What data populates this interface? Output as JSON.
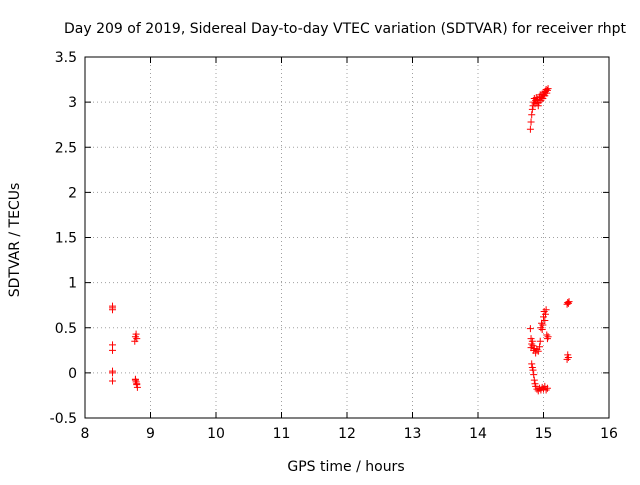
{
  "chart_data": {
    "type": "scatter",
    "title": "Day 209 of 2019, Sidereal Day-to-day VTEC variation (SDTVAR) for receiver rhpt",
    "xlabel": "GPS time / hours",
    "ylabel": "SDTVAR / TECUs",
    "xlim": [
      8,
      16
    ],
    "ylim": [
      -0.5,
      3.5
    ],
    "xticks": [
      8,
      9,
      10,
      11,
      12,
      13,
      14,
      15,
      16
    ],
    "xtick_labels": [
      "8",
      "9",
      "10",
      "11",
      "12",
      "13",
      "14",
      "15",
      "16"
    ],
    "yticks": [
      -0.5,
      0,
      0.5,
      1,
      1.5,
      2,
      2.5,
      3,
      3.5
    ],
    "ytick_labels": [
      "-0.5",
      "0",
      "0.5",
      "1",
      "1.5",
      "2",
      "2.5",
      "3",
      "3.5"
    ],
    "grid": true,
    "marker": "+",
    "color": "#ff0000",
    "series": [
      {
        "name": "SDTVAR",
        "x": [
          8.42,
          8.42,
          8.42,
          8.42,
          8.42,
          8.42,
          8.42,
          8.42,
          8.76,
          8.77,
          8.78,
          8.79,
          8.77,
          8.78,
          8.79,
          8.8,
          8.77,
          8.79,
          14.8,
          14.81,
          14.82,
          14.83,
          14.84,
          14.85,
          14.86,
          14.87,
          14.88,
          14.89,
          14.9,
          14.91,
          14.92,
          14.93,
          14.94,
          14.95,
          14.96,
          14.97,
          14.98,
          14.99,
          15.0,
          15.01,
          15.02,
          15.03,
          15.04,
          15.05,
          15.06,
          15.07,
          14.8,
          14.81,
          14.82,
          14.83,
          14.84,
          14.85,
          14.86,
          14.87,
          14.88,
          14.9,
          14.92,
          14.94,
          14.96,
          14.98,
          15.0,
          15.02,
          15.04,
          15.06,
          14.81,
          14.82,
          14.83,
          14.84,
          14.85,
          14.86,
          14.88,
          14.9,
          14.92,
          14.94,
          14.95,
          14.96,
          14.97,
          14.98,
          14.99,
          15.0,
          15.01,
          15.02,
          15.03,
          15.04,
          15.05,
          15.06,
          15.07,
          15.36,
          15.37,
          15.38,
          15.39,
          15.36,
          15.37,
          15.38
        ],
        "y": [
          0.74,
          0.7,
          0.31,
          0.25,
          0.02,
          0.0,
          -0.09,
          0.72,
          0.35,
          0.4,
          0.43,
          0.38,
          -0.07,
          -0.1,
          -0.13,
          -0.16,
          -0.08,
          -0.12,
          2.7,
          2.78,
          2.86,
          2.92,
          2.96,
          3.0,
          3.04,
          2.98,
          3.02,
          3.05,
          2.99,
          3.03,
          2.96,
          3.0,
          3.05,
          3.08,
          3.02,
          3.06,
          3.09,
          3.04,
          3.08,
          3.11,
          3.07,
          3.12,
          3.14,
          3.1,
          3.13,
          3.15,
          0.49,
          0.38,
          0.1,
          0.06,
          0.03,
          -0.02,
          -0.08,
          -0.12,
          -0.15,
          -0.18,
          -0.2,
          -0.17,
          -0.19,
          -0.16,
          -0.18,
          -0.15,
          -0.19,
          -0.17,
          0.28,
          0.32,
          0.35,
          0.3,
          0.25,
          0.27,
          0.22,
          0.26,
          0.24,
          0.29,
          0.35,
          0.5,
          0.55,
          0.48,
          0.53,
          0.62,
          0.68,
          0.58,
          0.65,
          0.7,
          0.42,
          0.38,
          0.4,
          0.76,
          0.78,
          0.77,
          0.79,
          0.15,
          0.2,
          0.17
        ]
      }
    ]
  }
}
